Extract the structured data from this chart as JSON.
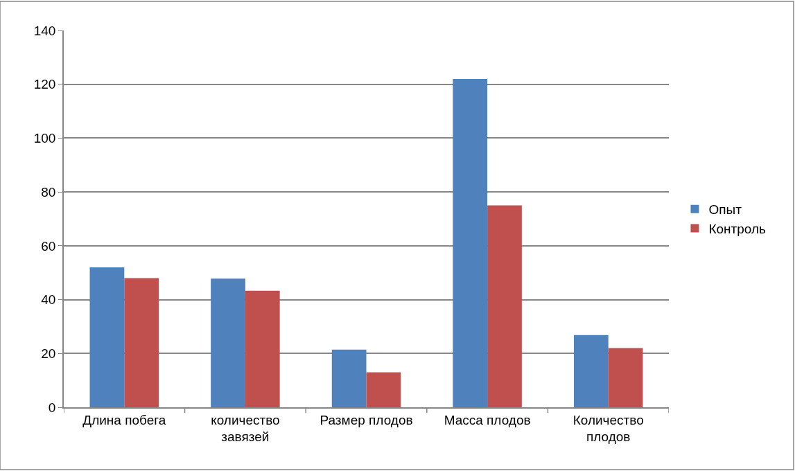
{
  "chart_data": {
    "type": "bar",
    "categories": [
      "Длина побега",
      "количество завязей",
      "Размер плодов",
      "Масса плодов",
      "Количество плодов"
    ],
    "series": [
      {
        "name": "Опыт",
        "color": "#4f81bd",
        "values": [
          52,
          47.8,
          21.4,
          122,
          26.8
        ]
      },
      {
        "name": "Контроль",
        "color": "#c0504d",
        "values": [
          48,
          43.3,
          13,
          75,
          22
        ]
      }
    ],
    "ylim": [
      0,
      140
    ],
    "yticks": [
      0,
      20,
      40,
      60,
      80,
      100,
      120,
      140
    ],
    "grid": "y",
    "legend": "right"
  }
}
